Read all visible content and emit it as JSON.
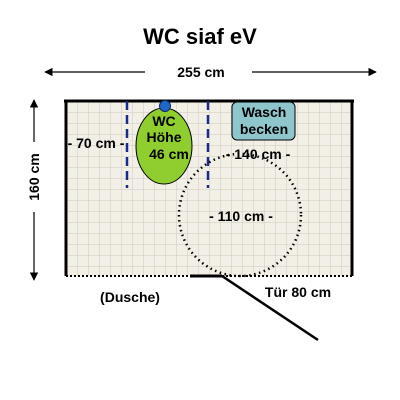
{
  "title": "WC siaf eV",
  "dimensions": {
    "width": "255 cm",
    "height": "160 cm",
    "toilet_left_clearance": "- 70 cm -",
    "toilet_right_clearance": "- 140 cm -",
    "turning_circle": "- 110 cm -",
    "door": "Tür 80 cm"
  },
  "toilet": {
    "line1": "WC",
    "line2": "Höhe",
    "line3": "46 cm",
    "fill_color": "#8fce2e"
  },
  "sink": {
    "line1": "Wasch",
    "line2": "becken",
    "fill_color": "#8fc6cc"
  },
  "shower_label": "(Dusche)",
  "colors": {
    "floor_tile_bg": "#f2efe6",
    "tile_lines": "#cfcabd",
    "grab_bar": "#1a2a8a",
    "flush_button": "#1f66c8"
  }
}
